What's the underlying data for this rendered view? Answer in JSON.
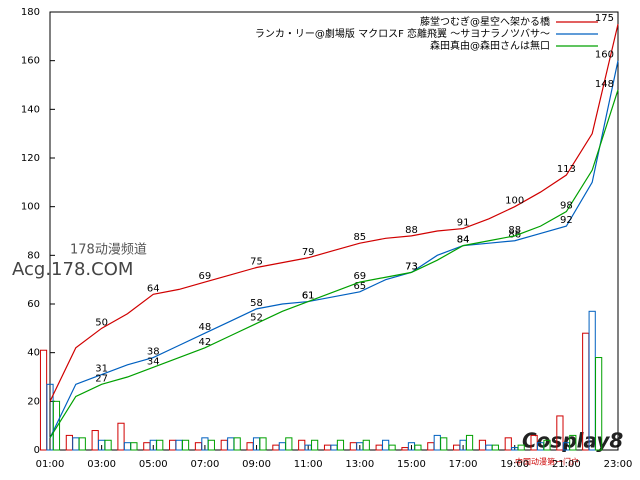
{
  "chart_data": {
    "type": "line",
    "x": [
      1,
      2,
      3,
      4,
      5,
      6,
      7,
      8,
      9,
      10,
      11,
      12,
      13,
      14,
      15,
      16,
      17,
      18,
      19,
      20,
      21,
      22,
      23
    ],
    "xlim": [
      1,
      23
    ],
    "xticks": [
      {
        "value": 1,
        "label": "01:00"
      },
      {
        "value": 3,
        "label": "03:00"
      },
      {
        "value": 5,
        "label": "05:00"
      },
      {
        "value": 7,
        "label": "07:00"
      },
      {
        "value": 9,
        "label": "09:00"
      },
      {
        "value": 11,
        "label": "11:00"
      },
      {
        "value": 13,
        "label": "13:00"
      },
      {
        "value": 15,
        "label": "15:00"
      },
      {
        "value": 17,
        "label": "17:00"
      },
      {
        "value": 19,
        "label": "19:00"
      },
      {
        "value": 21,
        "label": "21:00"
      },
      {
        "value": 23,
        "label": "23:00"
      }
    ],
    "ylim": [
      0,
      180
    ],
    "yticks": [
      0,
      20,
      40,
      60,
      80,
      100,
      120,
      140,
      160,
      180
    ],
    "series": [
      {
        "name": "藤堂つむぎ@星空へ架かる橋",
        "color": "#d00000",
        "values": [
          20,
          42,
          50,
          56,
          64,
          66,
          69,
          72,
          75,
          77,
          79,
          82,
          85,
          87,
          88,
          90,
          91,
          95,
          100,
          106,
          113,
          130,
          175
        ],
        "increments": [
          41,
          6,
          8,
          11,
          3,
          4,
          3,
          4,
          3,
          2,
          4,
          2,
          3,
          2,
          1,
          3,
          2,
          4,
          5,
          6,
          14,
          48,
          0
        ]
      },
      {
        "name": "ランカ・リー@劇場版 マクロスF 恋離飛翼 ～サヨナラノツバサ～",
        "color": "#0060c0",
        "values": [
          5,
          27,
          31,
          35,
          38,
          43,
          48,
          53,
          58,
          60,
          61,
          63,
          65,
          70,
          73,
          80,
          84,
          85,
          86,
          89,
          92,
          110,
          160
        ],
        "increments": [
          27,
          5,
          4,
          3,
          4,
          4,
          5,
          5,
          5,
          3,
          2,
          2,
          3,
          4,
          3,
          6,
          4,
          2,
          1,
          3,
          3,
          57,
          0
        ]
      },
      {
        "name": "森田真由@森田さんは無口",
        "color": "#00a000",
        "values": [
          5,
          22,
          27,
          30,
          34,
          38,
          42,
          47,
          52,
          57,
          61,
          65,
          69,
          71,
          73,
          78,
          84,
          86,
          88,
          92,
          98,
          115,
          148
        ],
        "increments": [
          20,
          5,
          4,
          3,
          4,
          4,
          4,
          5,
          5,
          5,
          4,
          4,
          4,
          2,
          2,
          5,
          6,
          2,
          2,
          4,
          6,
          38,
          0
        ]
      }
    ],
    "legend": "upper right",
    "watermarks": [
      "178动漫频道",
      "Acg.178.COM",
      "Cosplay8",
      "中国动漫第一门户"
    ]
  }
}
